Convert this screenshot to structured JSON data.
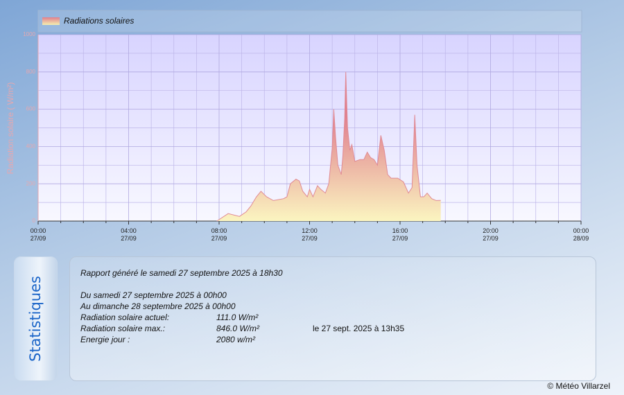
{
  "chart_data": {
    "type": "area",
    "legend": "Radiations solaires",
    "y_label": "Radiation solaire ( W/m²)",
    "series": [
      {
        "name": "Radiations solaires",
        "color": "#e08a94",
        "values": [
          0,
          40,
          25,
          50,
          80,
          130,
          160,
          130,
          110,
          120,
          130,
          200,
          225,
          215,
          160,
          130,
          170,
          130,
          190,
          170,
          150,
          200,
          390,
          600,
          450,
          300,
          250,
          350,
          550,
          800,
          500,
          380,
          410,
          320,
          330,
          330,
          370,
          340,
          330,
          300,
          460,
          380,
          250,
          230,
          230,
          210,
          150,
          180,
          570,
          300,
          130,
          130,
          150,
          120,
          110,
          111
        ]
      }
    ],
    "x": [
      7.9,
      8.4,
      8.9,
      9.2,
      9.4,
      9.65,
      9.85,
      10.1,
      10.4,
      10.85,
      11.0,
      11.15,
      11.4,
      11.55,
      11.7,
      11.9,
      12.0,
      12.15,
      12.35,
      12.5,
      12.7,
      12.85,
      13.0,
      13.07,
      13.15,
      13.25,
      13.4,
      13.47,
      13.55,
      13.6,
      13.68,
      13.78,
      13.87,
      14.0,
      14.23,
      14.4,
      14.55,
      14.7,
      14.85,
      15.0,
      15.15,
      15.3,
      15.45,
      15.6,
      15.9,
      16.15,
      16.37,
      16.53,
      16.65,
      16.75,
      16.9,
      17.05,
      17.2,
      17.4,
      17.6,
      17.8
    ],
    "xlim": [
      0,
      24
    ],
    "xticks": [
      {
        "value": 0,
        "label": "00:00\n27/09"
      },
      {
        "value": 4,
        "label": "04:00\n27/09"
      },
      {
        "value": 8,
        "label": "08:00\n27/09"
      },
      {
        "value": 12,
        "label": "12:00\n27/09"
      },
      {
        "value": 16,
        "label": "16:00\n27/09"
      },
      {
        "value": 20,
        "label": "20:00\n27/09"
      },
      {
        "value": 24,
        "label": "00:00\n28/09"
      }
    ],
    "xminorticks": [
      1,
      2,
      3,
      5,
      6,
      7,
      9,
      10,
      11,
      13,
      14,
      15,
      17,
      18,
      19,
      21,
      22,
      23
    ],
    "ylim": [
      0,
      1000
    ],
    "yticks": [
      0,
      200,
      400,
      600,
      800,
      1000
    ],
    "yminorticks": [
      100,
      300,
      500,
      700,
      900
    ],
    "grid": true
  },
  "stats": {
    "title": "Statistiques",
    "report": "Rapport généré le samedi 27 septembre 2025 à 18h30",
    "from": "Du samedi 27 septembre 2025 à 00h00",
    "to": "Au dimanche 28 septembre 2025 à 00h00",
    "rows": [
      {
        "label": "Radiation solaire actuel:",
        "value": "111.0 W/m²"
      },
      {
        "label": "Radiation solaire max.:",
        "value": "846.0 W/m²",
        "note": "le 27 sept. 2025 à 13h35"
      },
      {
        "label": "Energie jour :",
        "value": "2080 w/m²"
      }
    ]
  },
  "footer": "© Météo Villarzel"
}
